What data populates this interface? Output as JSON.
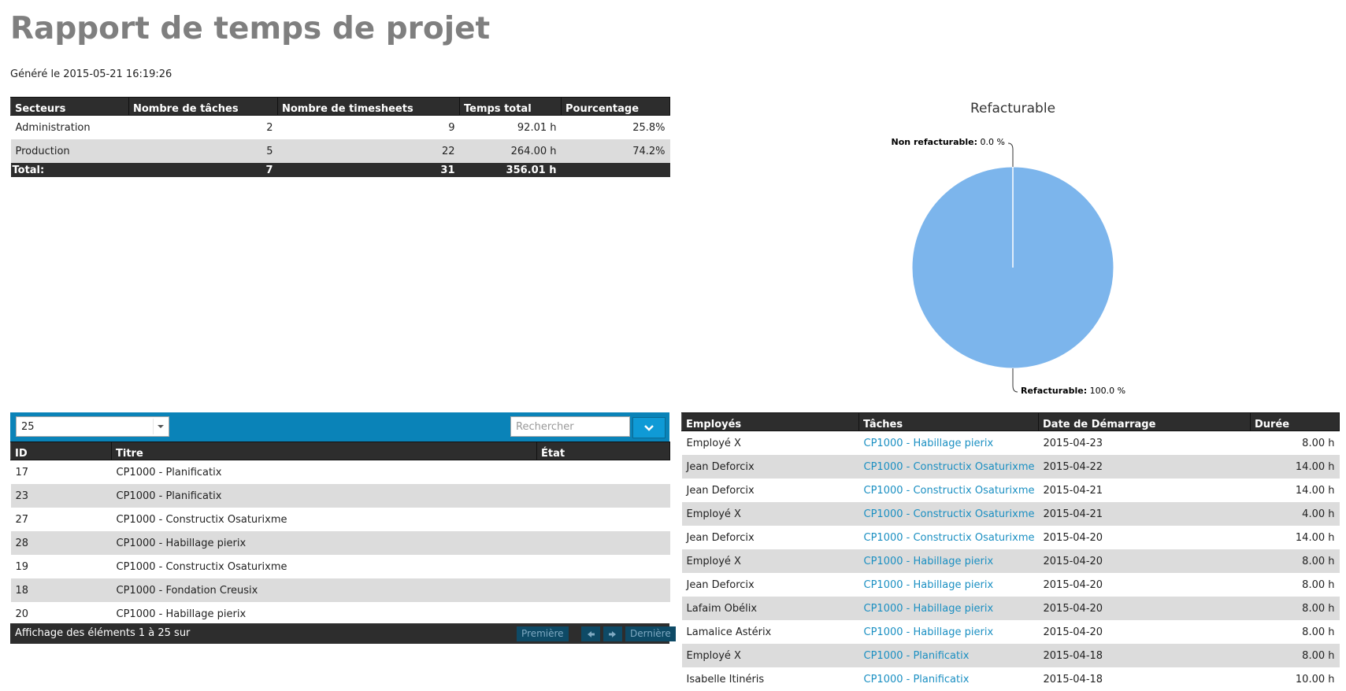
{
  "header": {
    "title": "Rapport de temps de projet",
    "generated": "Généré le 2015-05-21 16:19:26"
  },
  "summary_table": {
    "columns": [
      "Secteurs",
      "Nombre de tâches",
      "Nombre de timesheets",
      "Temps total",
      "Pourcentage"
    ],
    "rows": [
      [
        "Administration",
        "2",
        "9",
        "92.01 h",
        "25.8%"
      ],
      [
        "Production",
        "5",
        "22",
        "264.00 h",
        "74.2%"
      ]
    ],
    "total": [
      "Total:",
      "7",
      "31",
      "356.01 h"
    ]
  },
  "chart_data": {
    "type": "pie",
    "title": "Refacturable",
    "categories": [
      "Non refacturable",
      "Refacturable"
    ],
    "values": [
      0.0,
      100.0
    ],
    "value_labels": [
      "0.0 %",
      "100.0 %"
    ],
    "colors": [
      "#434348",
      "#7cb5ec"
    ]
  },
  "tasks_table": {
    "page_size": "25",
    "search_placeholder": "Rechercher",
    "columns": [
      "ID",
      "Titre",
      "État"
    ],
    "rows": [
      [
        "17",
        "CP1000 - Planificatix",
        ""
      ],
      [
        "23",
        "CP1000 - Planificatix",
        ""
      ],
      [
        "27",
        "CP1000 - Constructix Osaturixme",
        ""
      ],
      [
        "28",
        "CP1000 - Habillage pierix",
        ""
      ],
      [
        "19",
        "CP1000 - Constructix Osaturixme",
        ""
      ],
      [
        "18",
        "CP1000 - Fondation Creusix",
        ""
      ],
      [
        "20",
        "CP1000 - Habillage pierix",
        ""
      ]
    ],
    "footer": "Affichage des éléments 1 à 25 sur",
    "first_button": "Première",
    "last_button": "Dernière"
  },
  "employees_table": {
    "columns": [
      "Employés",
      "Tâches",
      "Date de Démarrage",
      "Durée"
    ],
    "rows": [
      [
        "Employé X",
        "CP1000 - Habillage pierix",
        "2015-04-23",
        "8.00 h"
      ],
      [
        "Jean Deforcix",
        "CP1000 - Constructix Osaturixme",
        "2015-04-22",
        "14.00 h"
      ],
      [
        "Jean Deforcix",
        "CP1000 - Constructix Osaturixme",
        "2015-04-21",
        "14.00 h"
      ],
      [
        "Employé X",
        "CP1000 - Constructix Osaturixme",
        "2015-04-21",
        "4.00 h"
      ],
      [
        "Jean Deforcix",
        "CP1000 - Constructix Osaturixme",
        "2015-04-20",
        "14.00 h"
      ],
      [
        "Employé X",
        "CP1000 - Habillage pierix",
        "2015-04-20",
        "8.00 h"
      ],
      [
        "Jean Deforcix",
        "CP1000 - Habillage pierix",
        "2015-04-20",
        "8.00 h"
      ],
      [
        "Lafaim Obélix",
        "CP1000 - Habillage pierix",
        "2015-04-20",
        "8.00 h"
      ],
      [
        "Lamalice Astérix",
        "CP1000 - Habillage pierix",
        "2015-04-20",
        "8.00 h"
      ],
      [
        "Employé X",
        "CP1000 - Planificatix",
        "2015-04-18",
        "8.00 h"
      ],
      [
        "Isabelle Itinéris",
        "CP1000 - Planificatix",
        "2015-04-18",
        "10.00 h"
      ]
    ]
  }
}
